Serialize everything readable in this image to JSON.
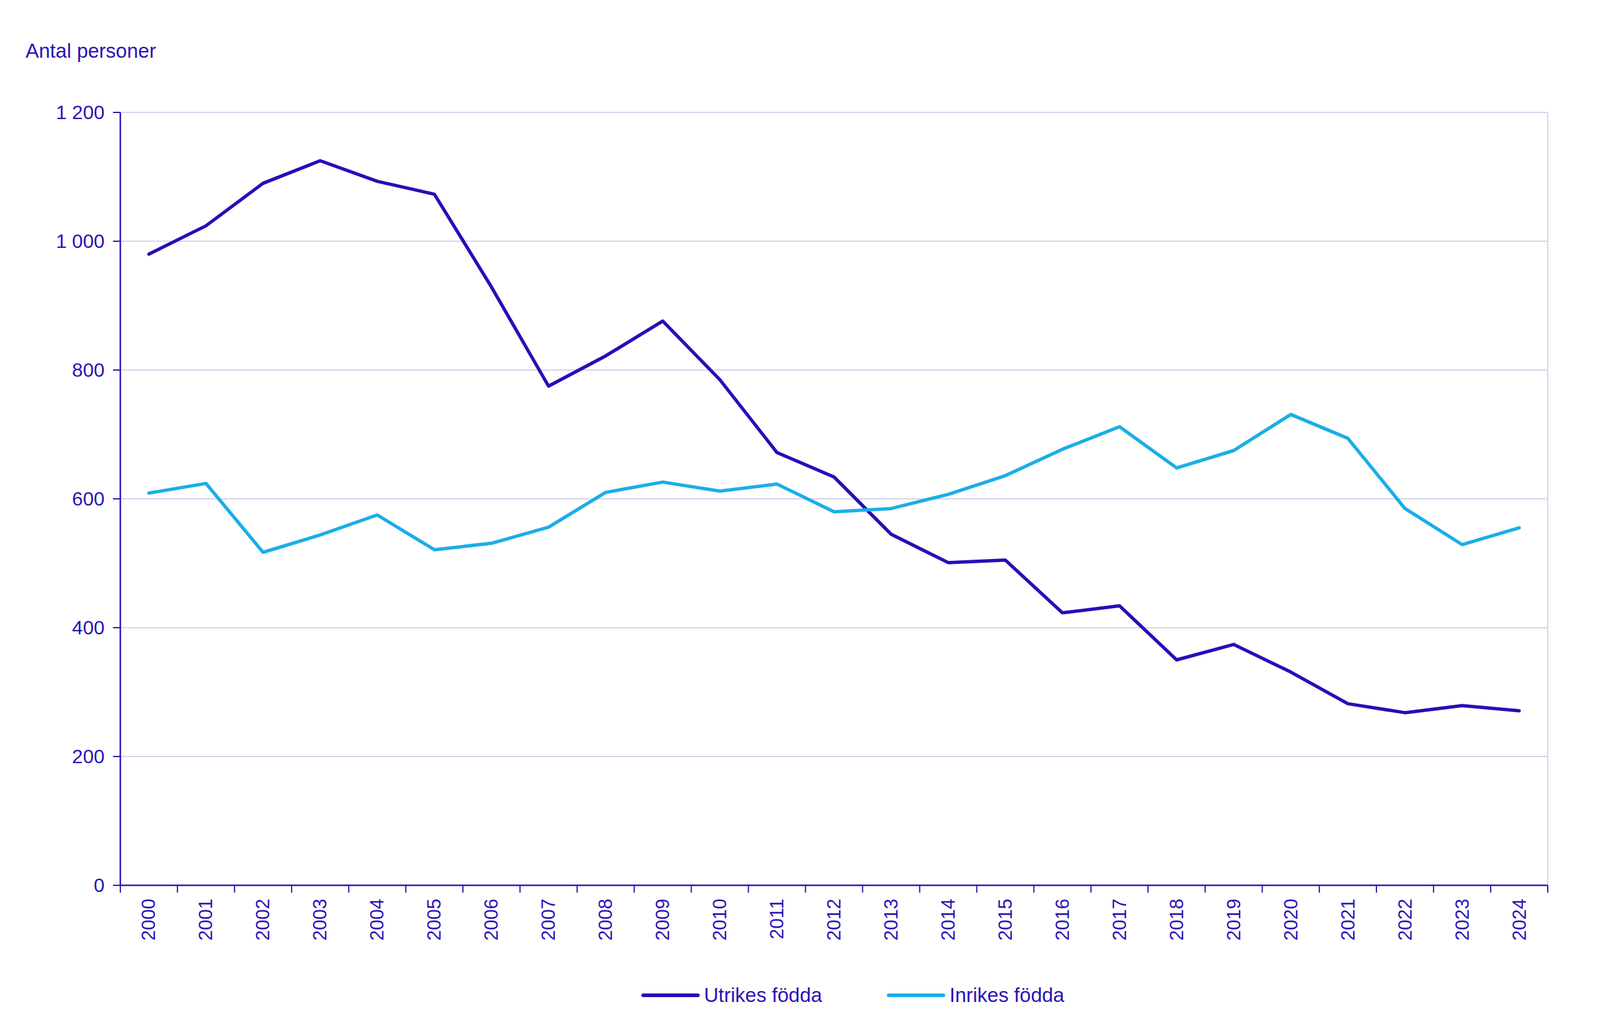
{
  "chart_data": {
    "type": "line",
    "ylabel": "Antal personer",
    "categories": [
      "2000",
      "2001",
      "2002",
      "2003",
      "2004",
      "2005",
      "2006",
      "2007",
      "2008",
      "2009",
      "2010",
      "2011",
      "2012",
      "2013",
      "2014",
      "2015",
      "2016",
      "2017",
      "2018",
      "2019",
      "2020",
      "2021",
      "2022",
      "2023",
      "2024"
    ],
    "series": [
      {
        "name": "Utrikes födda",
        "color": "#2410b8",
        "values": [
          980,
          1024,
          1090,
          1125,
          1093,
          1073,
          929,
          775,
          822,
          876,
          785,
          672,
          634,
          545,
          501,
          505,
          423,
          434,
          350,
          374,
          331,
          282,
          268,
          279,
          271
        ]
      },
      {
        "name": "Inrikes födda",
        "color": "#1aaee6",
        "values": [
          609,
          624,
          517,
          544,
          575,
          521,
          531,
          556,
          610,
          626,
          612,
          623,
          580,
          585,
          607,
          636,
          677,
          712,
          648,
          675,
          731,
          694,
          585,
          529,
          555
        ]
      }
    ],
    "ylim": [
      0,
      1200
    ],
    "yticks": [
      0,
      200,
      400,
      600,
      800,
      {
        "value": 1000,
        "label": "1 000"
      },
      {
        "value": 1200,
        "label": "1 200"
      }
    ],
    "grid": true,
    "legend": "bottom"
  }
}
